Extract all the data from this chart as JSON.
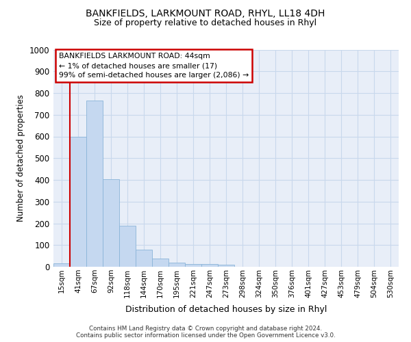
{
  "title1": "BANKFIELDS, LARKMOUNT ROAD, RHYL, LL18 4DH",
  "title2": "Size of property relative to detached houses in Rhyl",
  "xlabel": "Distribution of detached houses by size in Rhyl",
  "ylabel": "Number of detached properties",
  "bar_color": "#c5d8f0",
  "bar_edge_color": "#8ab4d8",
  "categories": [
    "15sqm",
    "41sqm",
    "67sqm",
    "92sqm",
    "118sqm",
    "144sqm",
    "170sqm",
    "195sqm",
    "221sqm",
    "247sqm",
    "273sqm",
    "298sqm",
    "324sqm",
    "350sqm",
    "376sqm",
    "401sqm",
    "427sqm",
    "453sqm",
    "479sqm",
    "504sqm",
    "530sqm"
  ],
  "values": [
    15,
    600,
    765,
    403,
    188,
    78,
    38,
    20,
    13,
    12,
    8,
    0,
    0,
    0,
    0,
    0,
    0,
    0,
    0,
    0,
    0
  ],
  "ylim": [
    0,
    1000
  ],
  "yticks": [
    0,
    100,
    200,
    300,
    400,
    500,
    600,
    700,
    800,
    900,
    1000
  ],
  "vline_x": 0.5,
  "vline_color": "#cc0000",
  "annotation_line1": "BANKFIELDS LARKMOUNT ROAD: 44sqm",
  "annotation_line2": "← 1% of detached houses are smaller (17)",
  "annotation_line3": "99% of semi-detached houses are larger (2,086) →",
  "annotation_box_edgecolor": "#cc0000",
  "footer": "Contains HM Land Registry data © Crown copyright and database right 2024.\nContains public sector information licensed under the Open Government Licence v3.0.",
  "grid_color": "#c8d8ec",
  "bg_color": "#e8eef8"
}
